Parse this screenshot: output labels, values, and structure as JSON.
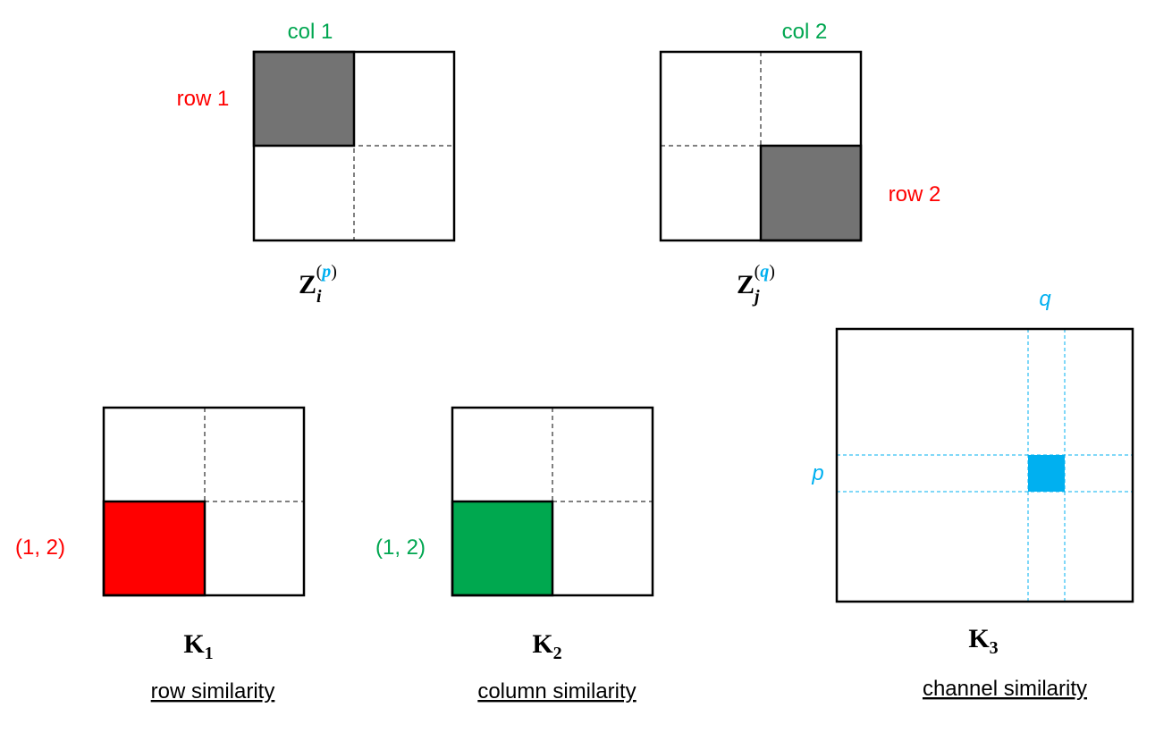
{
  "matrices": [
    {
      "name": {
        "base": "Z",
        "sub": "i",
        "sup_left": "(",
        "sup": "p",
        "sup_right": ")"
      },
      "col_label": "col 1",
      "row_label": "row 1"
    },
    {
      "name": {
        "base": "Z",
        "sub": "j",
        "sup_left": "(",
        "sup": "q",
        "sup_right": ")"
      },
      "col_label": "col 2",
      "row_label": "row 2"
    }
  ],
  "kernels": [
    {
      "name": {
        "base": "K",
        "sub": "1"
      },
      "index_label": "(1, 2)",
      "caption": "row similarity"
    },
    {
      "name": {
        "base": "K",
        "sub": "2"
      },
      "index_label": "(1, 2)",
      "caption": "column similarity"
    },
    {
      "name": {
        "base": "K",
        "sub": "3"
      },
      "col_label": "q",
      "row_label": "p",
      "caption": "channel similarity"
    }
  ]
}
